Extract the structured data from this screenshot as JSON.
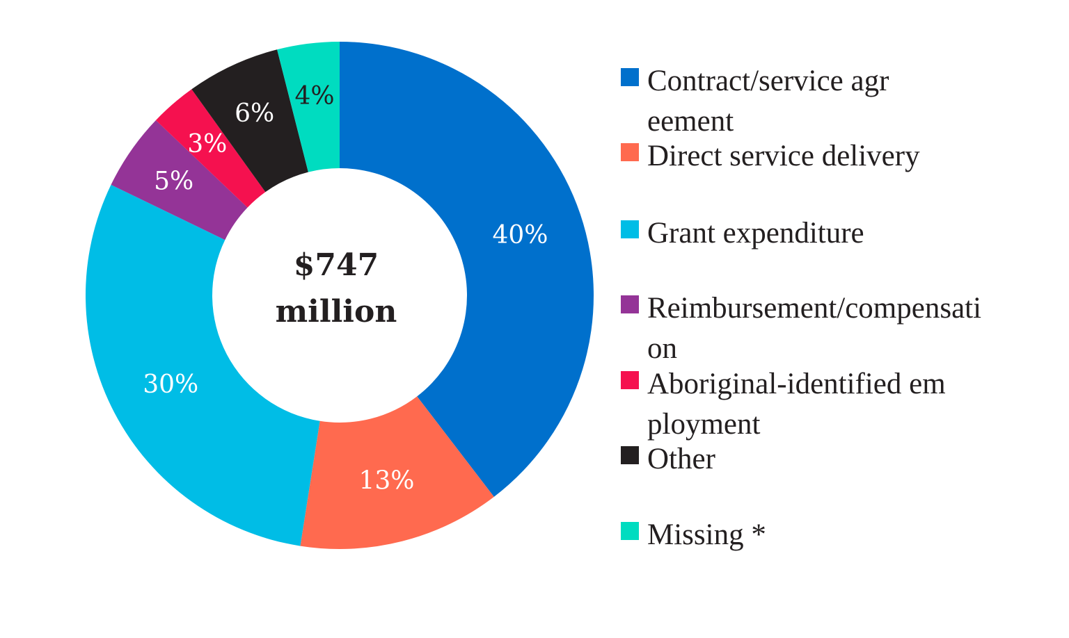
{
  "chart_data": {
    "type": "pie",
    "donut": true,
    "center_label": [
      "$747",
      "million"
    ],
    "start": "top",
    "direction": "clockwise",
    "legend_position": "right",
    "slices": [
      {
        "label": "Contract/service agreement",
        "value": 40,
        "display": "40%",
        "color": "#0070cc",
        "label_color": "#ffffff"
      },
      {
        "label": "Direct service delivery",
        "value": 13,
        "display": "13%",
        "color": "#ff6a4f",
        "label_color": "#ffffff"
      },
      {
        "label": "Grant expenditure",
        "value": 30,
        "display": "30%",
        "color": "#00bde6",
        "label_color": "#ffffff"
      },
      {
        "label": "Reimbursement/compensation",
        "value": 5,
        "display": "5%",
        "color": "#943497",
        "label_color": "#ffffff"
      },
      {
        "label": "Aboriginal-identified employment",
        "value": 3,
        "display": "3%",
        "color": "#f5114f",
        "label_color": "#ffffff"
      },
      {
        "label": "Other",
        "value": 6,
        "display": "6%",
        "color": "#231f20",
        "label_color": "#ffffff"
      },
      {
        "label": "Missing *",
        "value": 4,
        "display": "4%",
        "color": "#00dcc0",
        "label_color": "#231f20"
      }
    ]
  }
}
